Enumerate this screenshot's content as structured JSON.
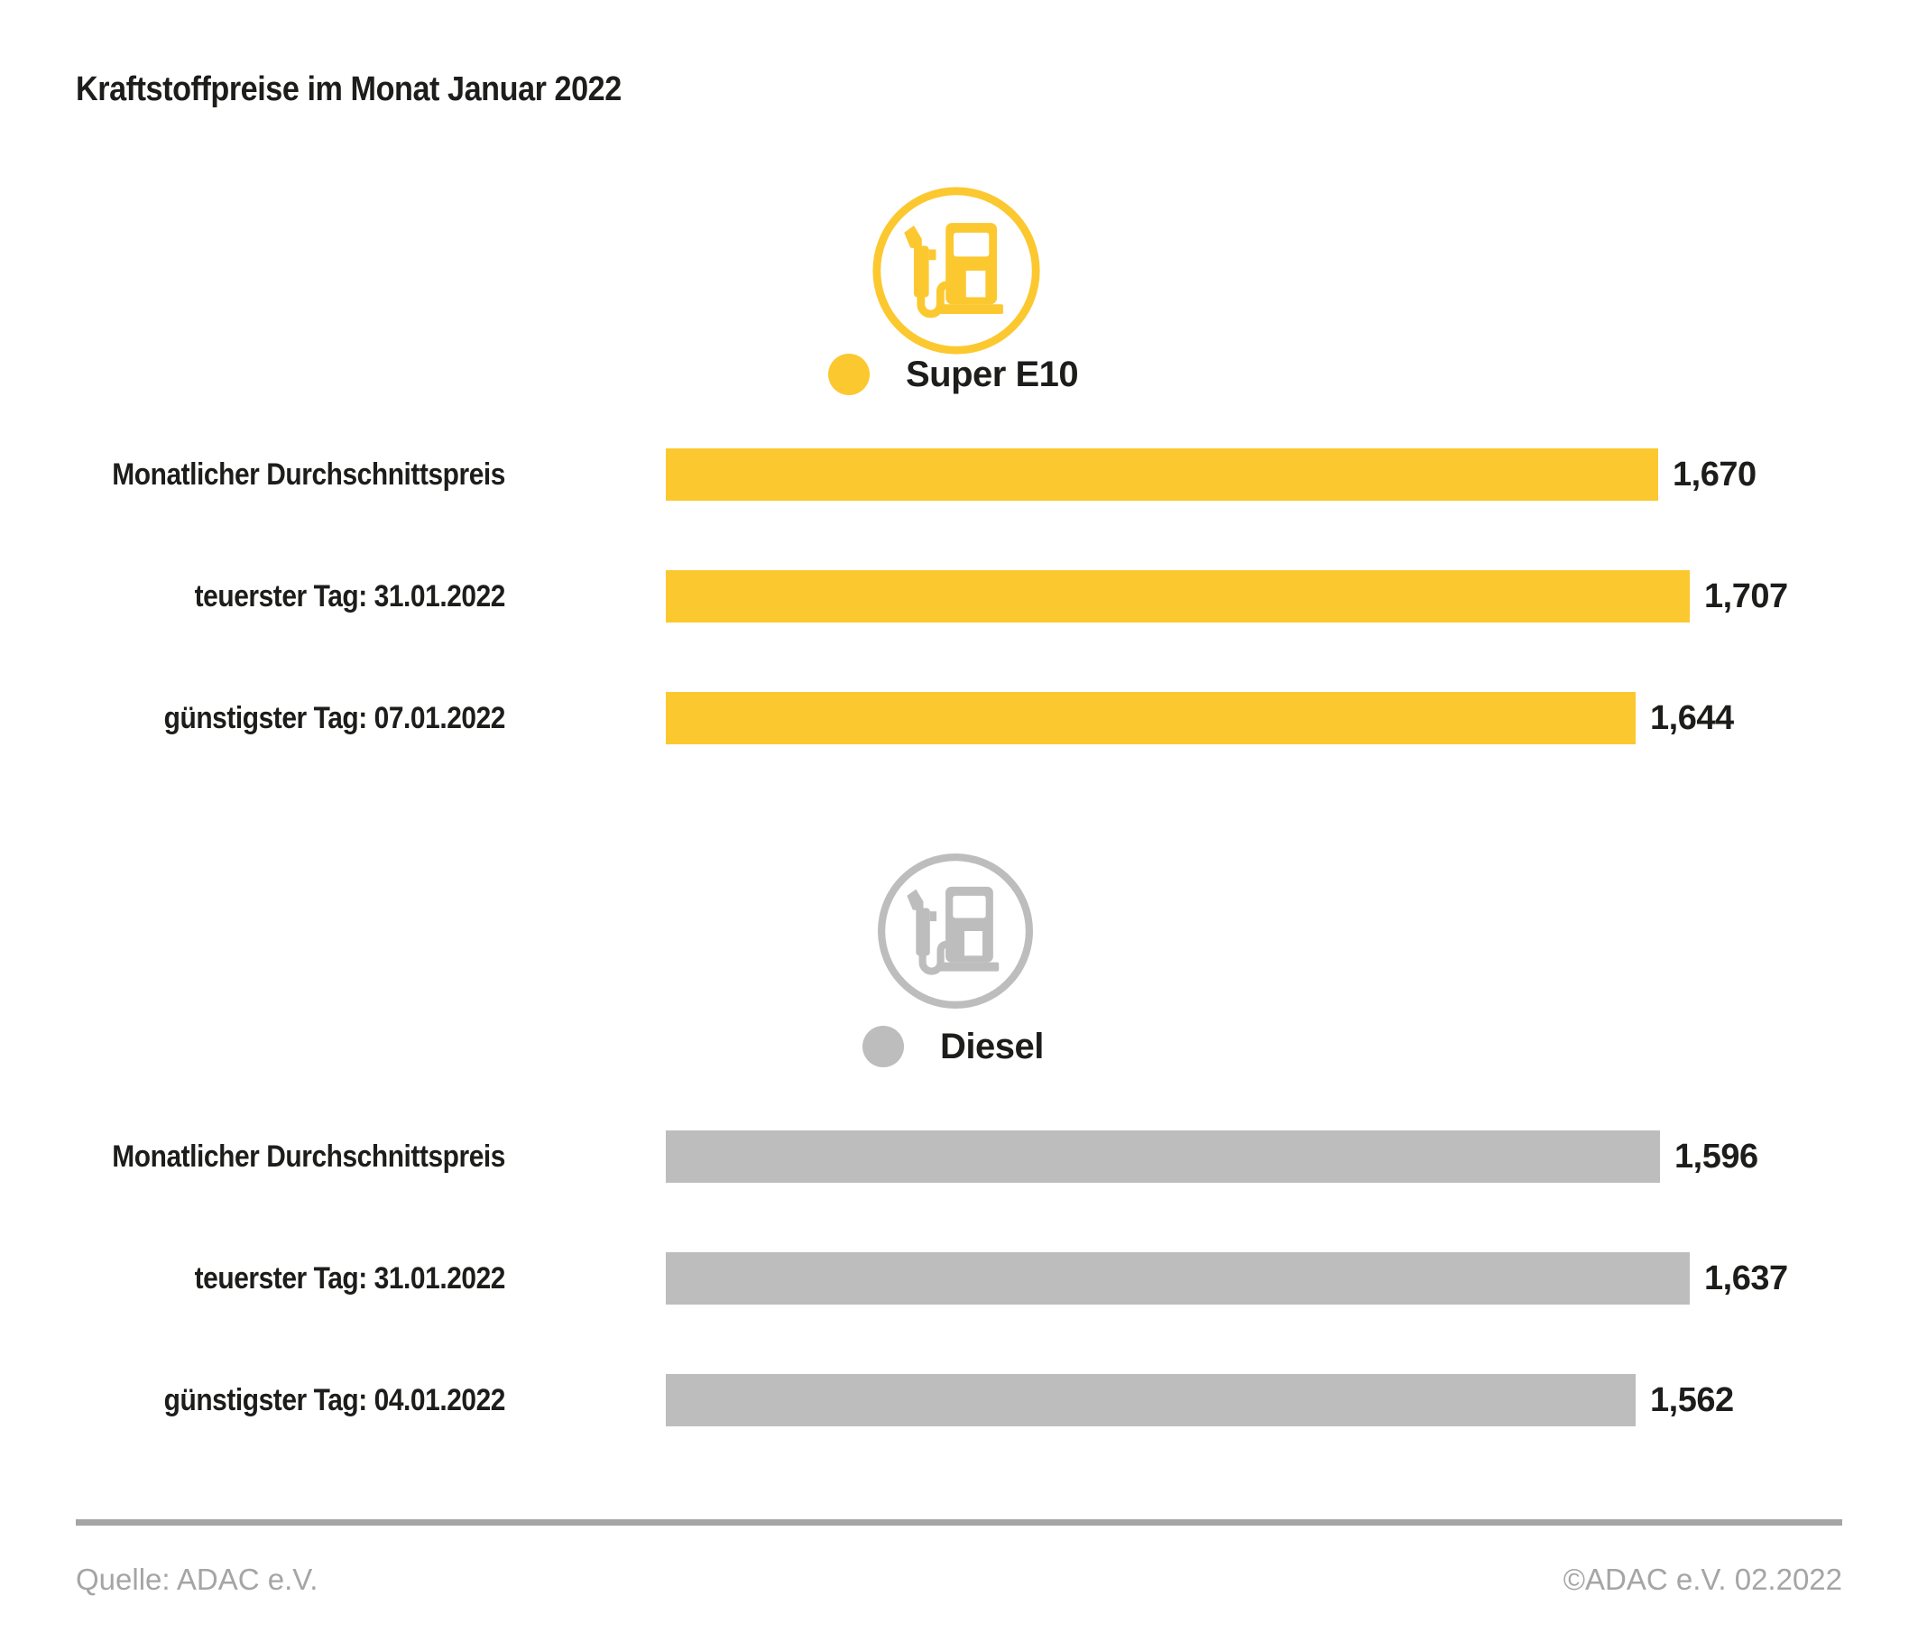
{
  "title": "Kraftstoffpreise im Monat Januar 2022",
  "colors": {
    "super_e10": "#FCC82F",
    "diesel": "#BDBDBD",
    "text": "#1D1D1B",
    "muted": "#A5A5A5"
  },
  "chart_data": {
    "type": "bar",
    "orientation": "horizontal",
    "title": "Kraftstoffpreise im Monat Januar 2022",
    "grid": false,
    "axes_visible": false,
    "value_labels_position": "end-of-bar",
    "legend_position": "top-center-of-each-group",
    "groups": [
      {
        "name": "Super E10",
        "icon": "fuel-pump-icon",
        "color": "#FCC82F",
        "bars": [
          {
            "label": "Monatlicher Durchschnittspreis",
            "value": 1.67,
            "value_label": "1,670"
          },
          {
            "label": "teuerster Tag: 31.01.2022",
            "value": 1.707,
            "value_label": "1,707"
          },
          {
            "label": "günstigster Tag: 07.01.2022",
            "value": 1.644,
            "value_label": "1,644"
          }
        ]
      },
      {
        "name": "Diesel",
        "icon": "fuel-pump-icon",
        "color": "#BDBDBD",
        "bars": [
          {
            "label": "Monatlicher Durchschnittspreis",
            "value": 1.596,
            "value_label": "1,596"
          },
          {
            "label": "teuerster Tag: 31.01.2022",
            "value": 1.637,
            "value_label": "1,637"
          },
          {
            "label": "günstigster Tag: 04.01.2022",
            "value": 1.562,
            "value_label": "1,562"
          }
        ]
      }
    ]
  },
  "footer": {
    "source": "Quelle: ADAC e.V.",
    "copyright": "©ADAC e.V. 02.2022"
  }
}
